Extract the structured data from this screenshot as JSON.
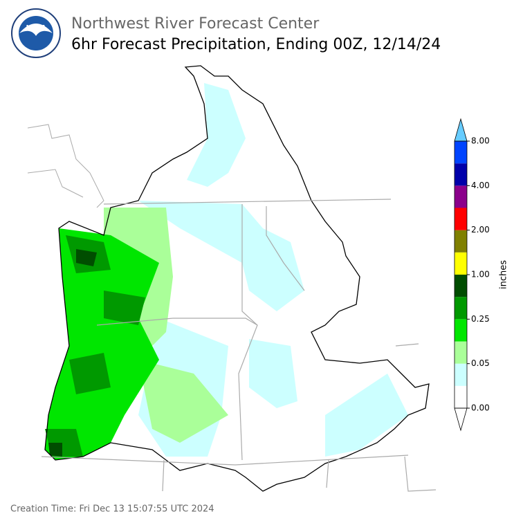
{
  "header": {
    "title": "Northwest River Forecast Center",
    "subtitle": "6hr Forecast Precipitation, Ending 00Z, 12/14/24"
  },
  "colorbar": {
    "label": "inches",
    "colors": [
      "#ffffff",
      "#ccffff",
      "#aaff99",
      "#00e600",
      "#009900",
      "#004d00",
      "#ffff00",
      "#808000",
      "#ff0000",
      "#8b008b",
      "#0000aa",
      "#0044ff"
    ],
    "under_color": "#ffffff",
    "over_color": "#66ccff",
    "tick_labels": [
      "0.00",
      "0.05",
      "0.25",
      "1.00",
      "2.00",
      "4.00",
      "8.00"
    ]
  },
  "footer": {
    "creation_time": "Creation Time: Fri Dec 13 15:07:55 UTC 2024"
  }
}
